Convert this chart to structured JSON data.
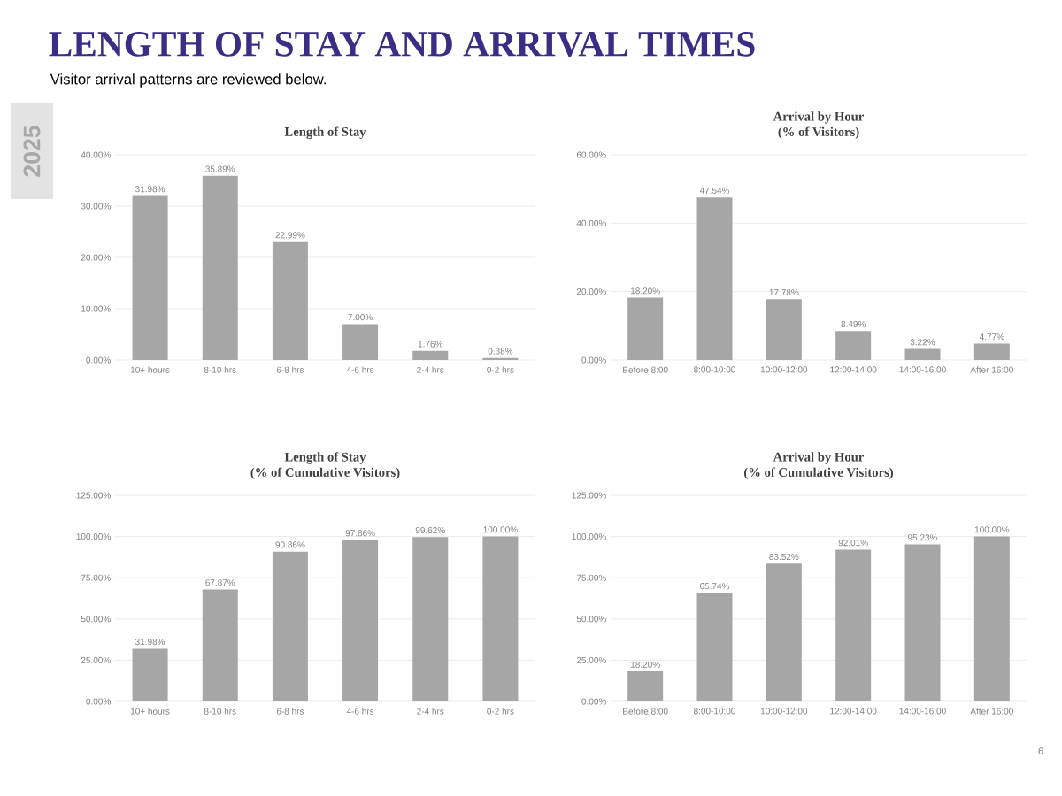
{
  "chart_data": [
    {
      "type": "other",
      "title": "LENGTH OF STAY AND ARRIVAL TIMES",
      "subtitle": "Visitor arrival patterns are reviewed below.",
      "annotations": [
        "2025",
        "6"
      ]
    },
    {
      "type": "bar",
      "title": "Length of Stay",
      "color": "#a6a6a6",
      "grid": "y",
      "categories": [
        "10+ hours",
        "8-10 hrs",
        "6-8 hrs",
        "4-6 hrs",
        "2-4 hrs",
        "0-2 hrs"
      ],
      "values": [
        31.98,
        35.89,
        22.99,
        7.0,
        1.76,
        0.38
      ],
      "value_labels": [
        "31.98%",
        "35.89%",
        "22.99%",
        "7.00%",
        "1.76%",
        "0.38%"
      ],
      "ylim": [
        0,
        40
      ],
      "yticks": [
        {
          "value": 0,
          "label": "0.00%"
        },
        {
          "value": 10,
          "label": "10.00%"
        },
        {
          "value": 20,
          "label": "20.00%"
        },
        {
          "value": 30,
          "label": "30.00%"
        },
        {
          "value": 40,
          "label": "40.00%"
        }
      ]
    },
    {
      "type": "bar",
      "title": "Arrival by Hour",
      "subtitle": "(% of Visitors)",
      "color": "#a6a6a6",
      "grid": "y",
      "categories": [
        "Before 8:00",
        "8:00-10:00",
        "10:00-12:00",
        "12:00-14:00",
        "14:00-16:00",
        "After 16:00"
      ],
      "values": [
        18.2,
        47.54,
        17.78,
        8.49,
        3.22,
        4.77
      ],
      "value_labels": [
        "18.20%",
        "47.54%",
        "17.78%",
        "8.49%",
        "3.22%",
        "4.77%"
      ],
      "ylim": [
        0,
        60
      ],
      "yticks": [
        {
          "value": 0,
          "label": "0.00%"
        },
        {
          "value": 20,
          "label": "20.00%"
        },
        {
          "value": 40,
          "label": "40.00%"
        },
        {
          "value": 60,
          "label": "60.00%"
        }
      ]
    },
    {
      "type": "bar",
      "title": "Length of Stay",
      "subtitle": "(% of Cumulative Visitors)",
      "color": "#a6a6a6",
      "grid": "y",
      "categories": [
        "10+ hours",
        "8-10 hrs",
        "6-8 hrs",
        "4-6 hrs",
        "2-4 hrs",
        "0-2 hrs"
      ],
      "values": [
        31.98,
        67.87,
        90.86,
        97.86,
        99.62,
        100.0
      ],
      "value_labels": [
        "31.98%",
        "67.87%",
        "90.86%",
        "97.86%",
        "99.62%",
        "100.00%"
      ],
      "ylim": [
        0,
        125
      ],
      "yticks": [
        {
          "value": 0,
          "label": "0.00%"
        },
        {
          "value": 25,
          "label": "25.00%"
        },
        {
          "value": 50,
          "label": "50.00%"
        },
        {
          "value": 75,
          "label": "75.00%"
        },
        {
          "value": 100,
          "label": "100.00%"
        },
        {
          "value": 125,
          "label": "125.00%"
        }
      ]
    },
    {
      "type": "bar",
      "title": "Arrival by Hour",
      "subtitle": "(% of Cumulative Visitors)",
      "color": "#a6a6a6",
      "grid": "y",
      "categories": [
        "Before 8:00",
        "8:00-10:00",
        "10:00-12:00",
        "12:00-14:00",
        "14:00-16:00",
        "After 16:00"
      ],
      "values": [
        18.2,
        65.74,
        83.52,
        92.01,
        95.23,
        100.0
      ],
      "value_labels": [
        "18.20%",
        "65.74%",
        "83.52%",
        "92.01%",
        "95.23%",
        "100.00%"
      ],
      "ylim": [
        0,
        125
      ],
      "yticks": [
        {
          "value": 0,
          "label": "0.00%"
        },
        {
          "value": 25,
          "label": "25.00%"
        },
        {
          "value": 50,
          "label": "50.00%"
        },
        {
          "value": 75,
          "label": "75.00%"
        },
        {
          "value": 100,
          "label": "100.00%"
        },
        {
          "value": 125,
          "label": "125.00%"
        }
      ]
    }
  ]
}
